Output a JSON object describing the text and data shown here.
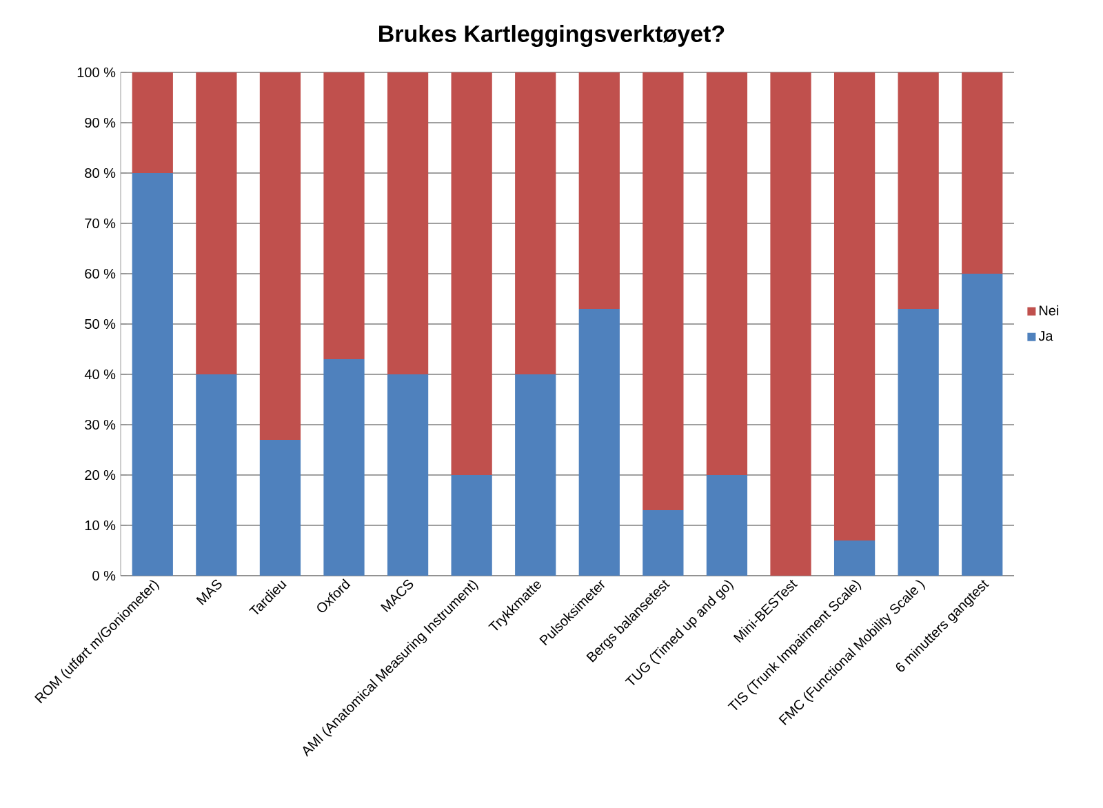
{
  "chart_data": {
    "type": "bar",
    "title": "Brukes Kartleggingsverktøyet?",
    "stacked": true,
    "grid": "y",
    "legend": "right",
    "categories": [
      "ROM (utført m/Goniometer)",
      "MAS",
      "Tardieu",
      "Oxford",
      "MACS",
      "AMI (Anatomical Measuring Instrument)",
      "Trykkmatte",
      "Pulsoksimeter",
      "Bergs balansetest",
      "TUG (Timed up and go)",
      "Mini-BESTest",
      "TIS (Trunk Impairment Scale)",
      "FMC (Functional Mobility Scale )",
      "6 minutters gangtest"
    ],
    "series": [
      {
        "name": "Ja",
        "color": "#4f81bd",
        "values": [
          80,
          40,
          27,
          43,
          40,
          20,
          40,
          53,
          13,
          20,
          0,
          7,
          53,
          60
        ]
      },
      {
        "name": "Nei",
        "color": "#c0504d",
        "values": [
          20,
          60,
          73,
          57,
          60,
          80,
          60,
          47,
          87,
          80,
          100,
          93,
          47,
          40
        ]
      }
    ],
    "ylim": [
      0,
      100
    ],
    "yticks": [
      {
        "value": 0,
        "label": "0 %"
      },
      {
        "value": 10,
        "label": "10 %"
      },
      {
        "value": 20,
        "label": "20 %"
      },
      {
        "value": 30,
        "label": "30 %"
      },
      {
        "value": 40,
        "label": "40 %"
      },
      {
        "value": 50,
        "label": "50 %"
      },
      {
        "value": 60,
        "label": "60 %"
      },
      {
        "value": 70,
        "label": "70 %"
      },
      {
        "value": 80,
        "label": "80 %"
      },
      {
        "value": 90,
        "label": "90 %"
      },
      {
        "value": 100,
        "label": "100 %"
      }
    ]
  }
}
